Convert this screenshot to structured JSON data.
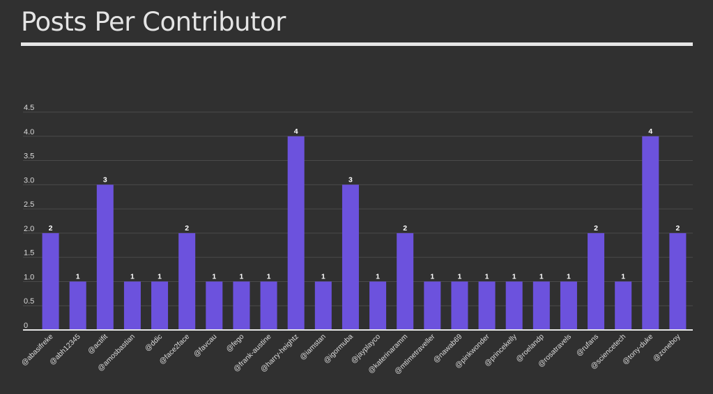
{
  "page": {
    "title": "Posts Per Contributor"
  },
  "colors": {
    "background": "#303030",
    "bar": "#6c52dd",
    "text": "#e4e4e4",
    "grid": "#4a4a4a"
  },
  "chart_data": {
    "type": "bar",
    "title": "Posts Per Contributor",
    "xlabel": "",
    "ylabel": "",
    "ylim": [
      0,
      4.5
    ],
    "yticks": [
      "0",
      "0.5",
      "1.0",
      "1.5",
      "2.0",
      "2.5",
      "3.0",
      "3.5",
      "4.0",
      "4.5"
    ],
    "grid": true,
    "legend": "none",
    "categories": [
      "@abasifreke",
      "@abh12345",
      "@actifit",
      "@amosbastian",
      "@ddic",
      "@face2face",
      "@favcau",
      "@fego",
      "@frank-austine",
      "@harry-heightz",
      "@iamstan",
      "@igormuba",
      "@jayplayco",
      "@katerinaramm",
      "@mtimetraveller",
      "@nawab69",
      "@pinkwonder",
      "@princekelly",
      "@roelandp",
      "@rosatravels",
      "@rufans",
      "@sciencetech",
      "@tony-duke",
      "@zoneboy"
    ],
    "values": [
      2,
      1,
      3,
      1,
      1,
      2,
      1,
      1,
      1,
      4,
      1,
      3,
      1,
      2,
      1,
      1,
      1,
      1,
      1,
      1,
      2,
      1,
      4,
      2
    ]
  }
}
